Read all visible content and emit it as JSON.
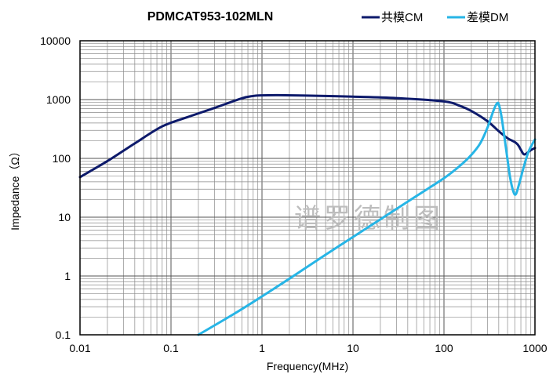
{
  "chart_data": {
    "type": "line",
    "title": "PDMCAT953-102MLN",
    "xlabel": "Frequency(MHz)",
    "ylabel": "Impedance（Ω）",
    "xscale": "log",
    "yscale": "log",
    "xlim": [
      0.01,
      1000
    ],
    "ylim": [
      0.1,
      10000
    ],
    "grid": true,
    "legend_position": "top-right",
    "x_tick_labels": [
      "0.01",
      "0.1",
      "1",
      "10",
      "100",
      "1000"
    ],
    "y_tick_labels": [
      "0.1",
      "1",
      "10",
      "100",
      "1000",
      "10000"
    ],
    "watermark": "谱罗德制图",
    "series": [
      {
        "name": "共模CM",
        "color": "#0d1a6b",
        "x": [
          0.01,
          0.02,
          0.04,
          0.08,
          0.15,
          0.3,
          0.6,
          0.8,
          1.0,
          1.5,
          3,
          10,
          30,
          100,
          150,
          200,
          300,
          400,
          500,
          600,
          650,
          700,
          750,
          800,
          900,
          1000
        ],
        "y": [
          48,
          90,
          180,
          350,
          500,
          720,
          1050,
          1150,
          1180,
          1190,
          1170,
          1120,
          1060,
          930,
          780,
          640,
          430,
          290,
          220,
          190,
          170,
          140,
          118,
          120,
          138,
          150
        ]
      },
      {
        "name": "差模DM",
        "color": "#27b5e6",
        "x": [
          0.2,
          0.5,
          1,
          2,
          5,
          10,
          20,
          50,
          100,
          150,
          200,
          250,
          300,
          350,
          380,
          400,
          430,
          480,
          530,
          580,
          620,
          680,
          750,
          850,
          1000
        ],
        "y": [
          0.1,
          0.23,
          0.45,
          0.9,
          2.3,
          4.6,
          9.2,
          23,
          46,
          75,
          115,
          180,
          330,
          650,
          850,
          830,
          500,
          150,
          50,
          27,
          25,
          40,
          70,
          130,
          210
        ]
      }
    ]
  }
}
